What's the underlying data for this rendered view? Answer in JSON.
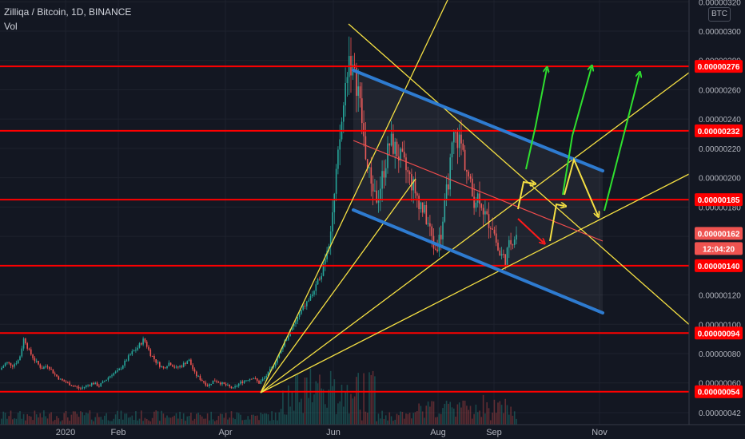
{
  "header": {
    "symbol": "Zilliqa / Bitcoin, 1D, BINANCE",
    "vol_label": "Vol",
    "currency": "BTC"
  },
  "colors": {
    "background": "#131722",
    "up": "#26a69a",
    "down": "#ef5350",
    "level_line": "#ff0000",
    "channel": "#2e7bd0",
    "trendline": "#f5e043",
    "green_arrow": "#2fe02f",
    "yellow_arrow": "#f5e043",
    "red_arrow": "#ff1a1a"
  },
  "chart_data": {
    "type": "candlestick",
    "title": "Zilliqa / Bitcoin, 1D, BINANCE",
    "ylim": [
      4e-07,
      3.2e-06
    ],
    "y_tick_labels": [
      "0.00000320",
      "0.00000300",
      "0.00000280",
      "0.00000260",
      "0.00000240",
      "0.00000220",
      "0.00000200",
      "0.00000180",
      "0.00000160",
      "0.00000140",
      "0.00000120",
      "0.00000100",
      "0.00000080",
      "0.00000060",
      "0.00000042"
    ],
    "x_tick_labels": [
      "2020",
      "Feb",
      "Apr",
      "Jun",
      "Aug",
      "Sep",
      "Nov"
    ],
    "price_label": "0.00000162",
    "countdown": "12:04:20",
    "horizontal_levels": [
      {
        "value": "0.00000276",
        "label": "0.00000276"
      },
      {
        "value": "0.00000232",
        "label": "0.00000232"
      },
      {
        "value": "0.00000185",
        "label": "0.00000185"
      },
      {
        "value": "0.00000140",
        "label": "0.00000140"
      },
      {
        "value": "0.00000094",
        "label": "0.00000094"
      },
      {
        "value": "0.00000054",
        "label": "0.00000054"
      }
    ],
    "price_path": [
      [
        0,
        6.9e-07
      ],
      [
        8,
        7.4e-07
      ],
      [
        16,
        7.2e-07
      ],
      [
        24,
        7.6e-07
      ],
      [
        30,
        9.1e-07
      ],
      [
        36,
        8.2e-07
      ],
      [
        44,
        7.5e-07
      ],
      [
        52,
        7e-07
      ],
      [
        60,
        7.2e-07
      ],
      [
        68,
        6.6e-07
      ],
      [
        76,
        6.2e-07
      ],
      [
        84,
        6e-07
      ],
      [
        92,
        5.8e-07
      ],
      [
        100,
        5.6e-07
      ],
      [
        108,
        5.8e-07
      ],
      [
        116,
        6e-07
      ],
      [
        124,
        5.8e-07
      ],
      [
        132,
        6.2e-07
      ],
      [
        140,
        6.6e-07
      ],
      [
        148,
        6.8e-07
      ],
      [
        156,
        7.4e-07
      ],
      [
        164,
        8e-07
      ],
      [
        172,
        8.4e-07
      ],
      [
        180,
        9e-07
      ],
      [
        188,
        8e-07
      ],
      [
        196,
        7.4e-07
      ],
      [
        204,
        7e-07
      ],
      [
        212,
        7.4e-07
      ],
      [
        220,
        7e-07
      ],
      [
        228,
        7.2e-07
      ],
      [
        236,
        7.6e-07
      ],
      [
        244,
        6.6e-07
      ],
      [
        252,
        6.2e-07
      ],
      [
        260,
        5.8e-07
      ],
      [
        268,
        6.2e-07
      ],
      [
        276,
        6e-07
      ],
      [
        284,
        5.8e-07
      ],
      [
        292,
        5.6e-07
      ],
      [
        300,
        6e-07
      ],
      [
        308,
        6.2e-07
      ],
      [
        316,
        6.4e-07
      ],
      [
        324,
        6e-07
      ],
      [
        332,
        6.4e-07
      ],
      [
        340,
        7e-07
      ],
      [
        348,
        7.8e-07
      ],
      [
        356,
        8.8e-07
      ],
      [
        364,
        9.6e-07
      ],
      [
        372,
        1.04e-06
      ],
      [
        380,
        1.12e-06
      ],
      [
        388,
        1.18e-06
      ],
      [
        396,
        1.26e-06
      ],
      [
        404,
        1.4e-06
      ],
      [
        412,
        1.6e-06
      ],
      [
        418,
        1.85e-06
      ],
      [
        424,
        2.2e-06
      ],
      [
        430,
        2.5e-06
      ],
      [
        436,
        2.85e-06
      ],
      [
        442,
        2.7e-06
      ],
      [
        448,
        2.62e-06
      ],
      [
        454,
        2.32e-06
      ],
      [
        460,
        2.05e-06
      ],
      [
        466,
        1.95e-06
      ],
      [
        472,
        1.85e-06
      ],
      [
        480,
        2.05e-06
      ],
      [
        488,
        2.25e-06
      ],
      [
        496,
        2.18e-06
      ],
      [
        504,
        2.1e-06
      ],
      [
        512,
        2e-06
      ],
      [
        520,
        1.9e-06
      ],
      [
        528,
        1.8e-06
      ],
      [
        536,
        1.68e-06
      ],
      [
        544,
        1.5e-06
      ],
      [
        552,
        1.62e-06
      ],
      [
        560,
        1.95e-06
      ],
      [
        568,
        2.28e-06
      ],
      [
        576,
        2.25e-06
      ],
      [
        584,
        2.05e-06
      ],
      [
        592,
        1.85e-06
      ],
      [
        600,
        1.88e-06
      ],
      [
        608,
        1.72e-06
      ],
      [
        616,
        1.68e-06
      ],
      [
        624,
        1.48e-06
      ],
      [
        632,
        1.45e-06
      ],
      [
        640,
        1.58e-06
      ],
      [
        646,
        1.62e-06
      ]
    ]
  }
}
